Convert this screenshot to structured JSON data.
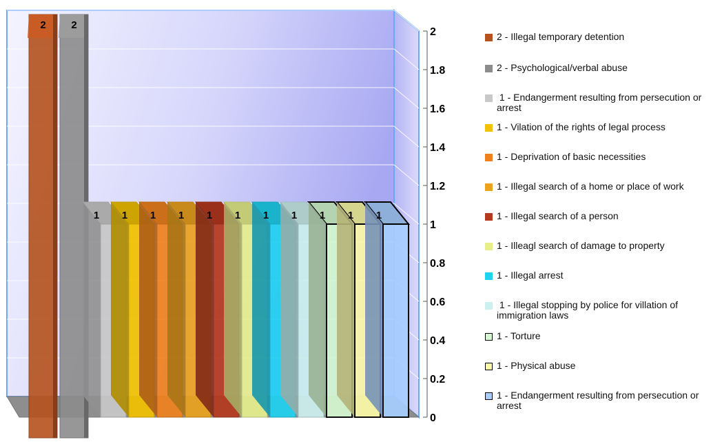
{
  "chart_data": {
    "type": "bar",
    "ylim": [
      0,
      2
    ],
    "yticks": [
      "0",
      "0.2",
      "0.4",
      "0.6",
      "0.8",
      "1",
      "1.2",
      "1.4",
      "1.6",
      "1.8",
      "2"
    ],
    "series": [
      {
        "value": 2,
        "label": "2",
        "legend": "2 - Illegal temporary detention",
        "color": "#b5521e",
        "outlined": false
      },
      {
        "value": 2,
        "label": "2",
        "legend": "2 - Psychological/verbal abuse",
        "color": "#8c8c8c",
        "outlined": false
      },
      {
        "value": 1,
        "label": "1",
        "legend": " 1 - Endangerment resulting from persecution or arrest",
        "color": "#c8c8c8",
        "outlined": false
      },
      {
        "value": 1,
        "label": "1",
        "legend": "1 - Vilation of the rights of legal process",
        "color": "#f2c200",
        "outlined": false
      },
      {
        "value": 1,
        "label": "1",
        "legend": "1 - Deprivation of basic necessities",
        "color": "#f0821e",
        "outlined": false
      },
      {
        "value": 1,
        "label": "1",
        "legend": "1 - Illegal search of a home or place of work",
        "color": "#eba21e",
        "outlined": false
      },
      {
        "value": 1,
        "label": "1",
        "legend": "1 - Illegal search of a person",
        "color": "#b5391e",
        "outlined": false
      },
      {
        "value": 1,
        "label": "1",
        "legend": "1 - Illeagl search of damage to property",
        "color": "#e6ef8c",
        "outlined": false
      },
      {
        "value": 1,
        "label": "1",
        "legend": "1 - Illegal arrest",
        "color": "#1ed2f0",
        "outlined": false
      },
      {
        "value": 1,
        "label": "1",
        "legend": " 1 - Illegal stopping by police for villation of immigration laws",
        "color": "#ccf0ee",
        "outlined": false
      },
      {
        "value": 1,
        "label": "1",
        "legend": "1 - Torture",
        "color": "#d4f8cf",
        "outlined": true
      },
      {
        "value": 1,
        "label": "1",
        "legend": "1 - Physical abuse",
        "color": "#fcfaa6",
        "outlined": true
      },
      {
        "value": 1,
        "label": "1",
        "legend": "1 - Endangerment resulting from persecution or arrest",
        "color": "#a7ceff",
        "outlined": true
      }
    ]
  }
}
